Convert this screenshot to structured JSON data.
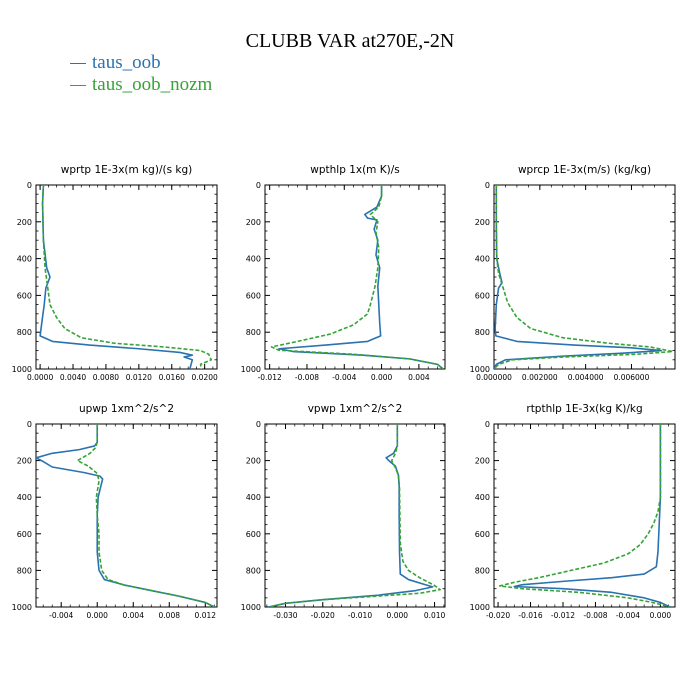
{
  "title": "CLUBB VAR at270E,-2N",
  "legend": [
    {
      "name": "taus_oob",
      "color": "#2a72b0"
    },
    {
      "name": "taus_oob_nozm",
      "color": "#36a336"
    }
  ],
  "chart_data": [
    {
      "type": "line",
      "title": "wprtp  1E-3x(m kg)/(s kg)",
      "xlim": [
        -0.0005,
        0.0215
      ],
      "ylim": [
        1000,
        0
      ],
      "xticks": [
        0.0,
        0.004,
        0.008,
        0.012,
        0.016,
        0.02
      ],
      "xticklabels": [
        "0.0000",
        "0.0040",
        "0.0080",
        "0.0120",
        "0.0160",
        "0.0200"
      ],
      "yticks": [
        0,
        200,
        400,
        600,
        800,
        1000
      ],
      "series": [
        {
          "name": "taus_oob",
          "points": [
            [
              0.0004,
              0
            ],
            [
              0.0003,
              100
            ],
            [
              0.0004,
              300
            ],
            [
              0.0008,
              450
            ],
            [
              0.0012,
              500
            ],
            [
              0.0007,
              560
            ],
            [
              0.0005,
              650
            ],
            [
              0.0002,
              750
            ],
            [
              0.0,
              820
            ],
            [
              0.0015,
              850
            ],
            [
              0.006,
              870
            ],
            [
              0.012,
              890
            ],
            [
              0.017,
              910
            ],
            [
              0.0185,
              925
            ],
            [
              0.0175,
              935
            ],
            [
              0.0185,
              950
            ],
            [
              0.0182,
              1000
            ]
          ]
        },
        {
          "name": "taus_oob_nozm",
          "points": [
            [
              0.0004,
              0
            ],
            [
              0.0003,
              100
            ],
            [
              0.0004,
              300
            ],
            [
              0.0006,
              450
            ],
            [
              0.0009,
              550
            ],
            [
              0.0012,
              650
            ],
            [
              0.002,
              720
            ],
            [
              0.003,
              780
            ],
            [
              0.005,
              830
            ],
            [
              0.009,
              860
            ],
            [
              0.015,
              880
            ],
            [
              0.0195,
              900
            ],
            [
              0.0205,
              920
            ],
            [
              0.0208,
              950
            ],
            [
              0.0195,
              975
            ],
            [
              0.0196,
              1000
            ]
          ]
        }
      ]
    },
    {
      "type": "line",
      "title": "wpthlp  1x(m K)/s",
      "xlim": [
        -0.0125,
        0.0068
      ],
      "ylim": [
        1000,
        0
      ],
      "xticks": [
        -0.012,
        -0.008,
        -0.004,
        0.0,
        0.004
      ],
      "xticklabels": [
        "-0.012",
        "-0.008",
        "-0.004",
        "0.000",
        "0.004"
      ],
      "yticks": [
        0,
        200,
        400,
        600,
        800,
        1000
      ],
      "series": [
        {
          "name": "taus_oob",
          "points": [
            [
              0.0,
              0
            ],
            [
              0.0,
              60
            ],
            [
              -0.0005,
              120
            ],
            [
              -0.0018,
              160
            ],
            [
              -0.0015,
              180
            ],
            [
              -0.0005,
              190
            ],
            [
              -0.0008,
              240
            ],
            [
              -0.0004,
              300
            ],
            [
              -0.0006,
              380
            ],
            [
              -0.0002,
              450
            ],
            [
              -0.0004,
              550
            ],
            [
              -0.0003,
              650
            ],
            [
              -0.0002,
              750
            ],
            [
              -0.0001,
              820
            ],
            [
              -0.0015,
              850
            ],
            [
              -0.006,
              870
            ],
            [
              -0.011,
              890
            ],
            [
              -0.0095,
              905
            ],
            [
              -0.002,
              925
            ],
            [
              0.003,
              945
            ],
            [
              0.006,
              975
            ],
            [
              0.0066,
              1000
            ]
          ]
        },
        {
          "name": "taus_oob_nozm",
          "points": [
            [
              0.0,
              0
            ],
            [
              0.0,
              60
            ],
            [
              -0.0003,
              120
            ],
            [
              -0.0012,
              160
            ],
            [
              -0.0004,
              200
            ],
            [
              -0.0006,
              260
            ],
            [
              -0.0003,
              340
            ],
            [
              -0.0004,
              450
            ],
            [
              -0.0007,
              550
            ],
            [
              -0.0012,
              650
            ],
            [
              -0.0015,
              700
            ],
            [
              -0.003,
              760
            ],
            [
              -0.0055,
              810
            ],
            [
              -0.009,
              850
            ],
            [
              -0.0118,
              880
            ],
            [
              -0.011,
              898
            ],
            [
              -0.003,
              920
            ],
            [
              0.003,
              945
            ],
            [
              0.006,
              975
            ],
            [
              0.0066,
              1000
            ]
          ]
        }
      ]
    },
    {
      "type": "line",
      "title": "wprcp  1E-3x(m/s) (kg/kg)",
      "xlim": [
        0.0,
        0.0079
      ],
      "ylim": [
        1000,
        0
      ],
      "xticks": [
        0.0,
        0.002,
        0.004,
        0.006
      ],
      "xticklabels": [
        "0.000000",
        "0.002000",
        "0.004000",
        "0.006000"
      ],
      "yticks": [
        0,
        200,
        400,
        600,
        800,
        1000
      ],
      "series": [
        {
          "name": "taus_oob",
          "points": [
            [
              0.0001,
              0
            ],
            [
              0.0001,
              200
            ],
            [
              0.00012,
              400
            ],
            [
              0.00025,
              480
            ],
            [
              0.00035,
              530
            ],
            [
              0.0002,
              560
            ],
            [
              0.0001,
              650
            ],
            [
              5e-05,
              780
            ],
            [
              8e-05,
              820
            ],
            [
              0.001,
              850
            ],
            [
              0.0035,
              870
            ],
            [
              0.006,
              885
            ],
            [
              0.0073,
              900
            ],
            [
              0.0055,
              915
            ],
            [
              0.003,
              930
            ],
            [
              0.0005,
              950
            ],
            [
              0.0001,
              975
            ],
            [
              0.0,
              1000
            ]
          ]
        },
        {
          "name": "taus_oob_nozm",
          "points": [
            [
              0.0001,
              0
            ],
            [
              0.0001,
              200
            ],
            [
              0.00012,
              400
            ],
            [
              0.0002,
              480
            ],
            [
              0.0004,
              560
            ],
            [
              0.0006,
              640
            ],
            [
              0.001,
              720
            ],
            [
              0.0016,
              780
            ],
            [
              0.003,
              830
            ],
            [
              0.005,
              860
            ],
            [
              0.0068,
              880
            ],
            [
              0.0078,
              905
            ],
            [
              0.0062,
              920
            ],
            [
              0.003,
              935
            ],
            [
              0.0008,
              950
            ],
            [
              0.0002,
              975
            ],
            [
              0.0,
              1000
            ]
          ]
        }
      ]
    },
    {
      "type": "line",
      "title": "upwp  1xm^2/s^2",
      "xlim": [
        -0.0068,
        0.0133
      ],
      "ylim": [
        1000,
        0
      ],
      "xticks": [
        -0.004,
        0.0,
        0.004,
        0.008,
        0.012
      ],
      "xticklabels": [
        "-0.004",
        "0.000",
        "0.004",
        "0.008",
        "0.012"
      ],
      "yticks": [
        0,
        200,
        400,
        600,
        800,
        1000
      ],
      "series": [
        {
          "name": "taus_oob",
          "points": [
            [
              0.0,
              0
            ],
            [
              0.0,
              100
            ],
            [
              -0.0003,
              120
            ],
            [
              -0.002,
              140
            ],
            [
              -0.005,
              160
            ],
            [
              -0.0068,
              185
            ],
            [
              -0.006,
              205
            ],
            [
              -0.005,
              235
            ],
            [
              -0.0015,
              265
            ],
            [
              0.0003,
              285
            ],
            [
              0.0006,
              300
            ],
            [
              0.0004,
              340
            ],
            [
              0.0001,
              400
            ],
            [
              0.0,
              500
            ],
            [
              0.0,
              600
            ],
            [
              0.0,
              700
            ],
            [
              0.0002,
              800
            ],
            [
              0.0008,
              850
            ],
            [
              0.003,
              880
            ],
            [
              0.006,
              910
            ],
            [
              0.009,
              940
            ],
            [
              0.012,
              975
            ],
            [
              0.013,
              1000
            ]
          ]
        },
        {
          "name": "taus_oob_nozm",
          "points": [
            [
              0.0,
              0
            ],
            [
              0.0,
              100
            ],
            [
              -0.0002,
              130
            ],
            [
              -0.0008,
              160
            ],
            [
              -0.0022,
              200
            ],
            [
              -0.001,
              230
            ],
            [
              0.0,
              270
            ],
            [
              0.0002,
              310
            ],
            [
              -0.0001,
              400
            ],
            [
              0.0,
              500
            ],
            [
              0.0002,
              600
            ],
            [
              0.0002,
              700
            ],
            [
              0.0005,
              800
            ],
            [
              0.0012,
              850
            ],
            [
              0.003,
              880
            ],
            [
              0.006,
              910
            ],
            [
              0.009,
              940
            ],
            [
              0.012,
              975
            ],
            [
              0.013,
              1000
            ]
          ]
        }
      ]
    },
    {
      "type": "line",
      "title": "vpwp  1xm^2/s^2",
      "xlim": [
        -0.0355,
        0.0128
      ],
      "ylim": [
        1000,
        0
      ],
      "xticks": [
        -0.03,
        -0.02,
        -0.01,
        0.0,
        0.01
      ],
      "xticklabels": [
        "-0.030",
        "-0.020",
        "-0.010",
        "0.000",
        "0.010"
      ],
      "yticks": [
        0,
        200,
        400,
        600,
        800,
        1000
      ],
      "series": [
        {
          "name": "taus_oob",
          "points": [
            [
              0.0,
              0
            ],
            [
              0.0,
              120
            ],
            [
              -0.001,
              160
            ],
            [
              -0.003,
              185
            ],
            [
              -0.002,
              205
            ],
            [
              -0.0005,
              230
            ],
            [
              0.0003,
              280
            ],
            [
              0.0005,
              340
            ],
            [
              0.0005,
              500
            ],
            [
              0.0006,
              700
            ],
            [
              0.0008,
              820
            ],
            [
              0.003,
              850
            ],
            [
              0.007,
              875
            ],
            [
              0.0095,
              890
            ],
            [
              0.005,
              910
            ],
            [
              -0.005,
              935
            ],
            [
              -0.02,
              960
            ],
            [
              -0.03,
              980
            ],
            [
              -0.0345,
              1000
            ]
          ]
        },
        {
          "name": "taus_oob_nozm",
          "points": [
            [
              0.0,
              0
            ],
            [
              0.0,
              120
            ],
            [
              -0.0005,
              160
            ],
            [
              -0.0015,
              200
            ],
            [
              -0.0005,
              240
            ],
            [
              0.0003,
              280
            ],
            [
              0.0006,
              350
            ],
            [
              0.0007,
              500
            ],
            [
              0.0008,
              650
            ],
            [
              0.0015,
              750
            ],
            [
              0.003,
              800
            ],
            [
              0.006,
              840
            ],
            [
              0.0098,
              880
            ],
            [
              0.0115,
              905
            ],
            [
              0.006,
              925
            ],
            [
              -0.005,
              940
            ],
            [
              -0.02,
              960
            ],
            [
              -0.03,
              980
            ],
            [
              -0.0345,
              1000
            ]
          ]
        }
      ]
    },
    {
      "type": "line",
      "title": "rtpthlp  1E-3x(kg K)/kg",
      "xlim": [
        -0.0205,
        0.0018
      ],
      "ylim": [
        1000,
        0
      ],
      "xticks": [
        -0.02,
        -0.016,
        -0.012,
        -0.008,
        -0.004,
        0.0
      ],
      "xticklabels": [
        "-0.020",
        "-0.016",
        "-0.012",
        "-0.008",
        "-0.004",
        "0.000"
      ],
      "yticks": [
        0,
        200,
        400,
        600,
        800,
        1000
      ],
      "series": [
        {
          "name": "taus_oob",
          "points": [
            [
              0.0,
              0
            ],
            [
              0.0,
              200
            ],
            [
              0.0,
              400
            ],
            [
              -0.0001,
              500
            ],
            [
              -0.0002,
              600
            ],
            [
              -0.0003,
              700
            ],
            [
              -0.0005,
              780
            ],
            [
              -0.002,
              820
            ],
            [
              -0.006,
              840
            ],
            [
              -0.012,
              860
            ],
            [
              -0.017,
              878
            ],
            [
              -0.018,
              888
            ],
            [
              -0.012,
              900
            ],
            [
              -0.006,
              920
            ],
            [
              -0.002,
              950
            ],
            [
              0.0,
              975
            ],
            [
              0.0012,
              1000
            ]
          ]
        },
        {
          "name": "taus_oob_nozm",
          "points": [
            [
              0.0,
              0
            ],
            [
              0.0,
              200
            ],
            [
              0.0,
              400
            ],
            [
              -0.0003,
              480
            ],
            [
              -0.0008,
              540
            ],
            [
              -0.0015,
              600
            ],
            [
              -0.0025,
              660
            ],
            [
              -0.004,
              710
            ],
            [
              -0.007,
              760
            ],
            [
              -0.011,
              800
            ],
            [
              -0.015,
              840
            ],
            [
              -0.018,
              865
            ],
            [
              -0.0198,
              885
            ],
            [
              -0.017,
              900
            ],
            [
              -0.01,
              920
            ],
            [
              -0.004,
              950
            ],
            [
              -0.001,
              975
            ],
            [
              0.0012,
              1000
            ]
          ]
        }
      ]
    }
  ]
}
